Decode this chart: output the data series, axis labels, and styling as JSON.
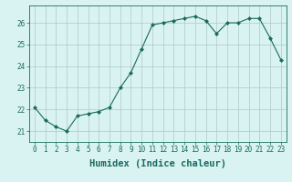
{
  "x": [
    0,
    1,
    2,
    3,
    4,
    5,
    6,
    7,
    8,
    9,
    10,
    11,
    12,
    13,
    14,
    15,
    16,
    17,
    18,
    19,
    20,
    21,
    22,
    23
  ],
  "y": [
    22.1,
    21.5,
    21.2,
    21.0,
    21.7,
    21.8,
    21.9,
    22.1,
    23.0,
    23.7,
    24.8,
    25.9,
    26.0,
    26.1,
    26.2,
    26.3,
    26.1,
    25.5,
    26.0,
    26.0,
    26.2,
    26.2,
    25.3,
    24.3
  ],
  "xlabel": "Humidex (Indice chaleur)",
  "xlim": [
    -0.5,
    23.5
  ],
  "ylim": [
    20.5,
    26.8
  ],
  "yticks": [
    21,
    22,
    23,
    24,
    25,
    26
  ],
  "xticks": [
    0,
    1,
    2,
    3,
    4,
    5,
    6,
    7,
    8,
    9,
    10,
    11,
    12,
    13,
    14,
    15,
    16,
    17,
    18,
    19,
    20,
    21,
    22,
    23
  ],
  "line_color": "#1a6b5e",
  "marker_color": "#1a6b5e",
  "bg_color": "#d9f2f2",
  "grid_color": "#b0c8c8",
  "xlabel_fontsize": 7.5,
  "tick_fontsize": 5.5
}
